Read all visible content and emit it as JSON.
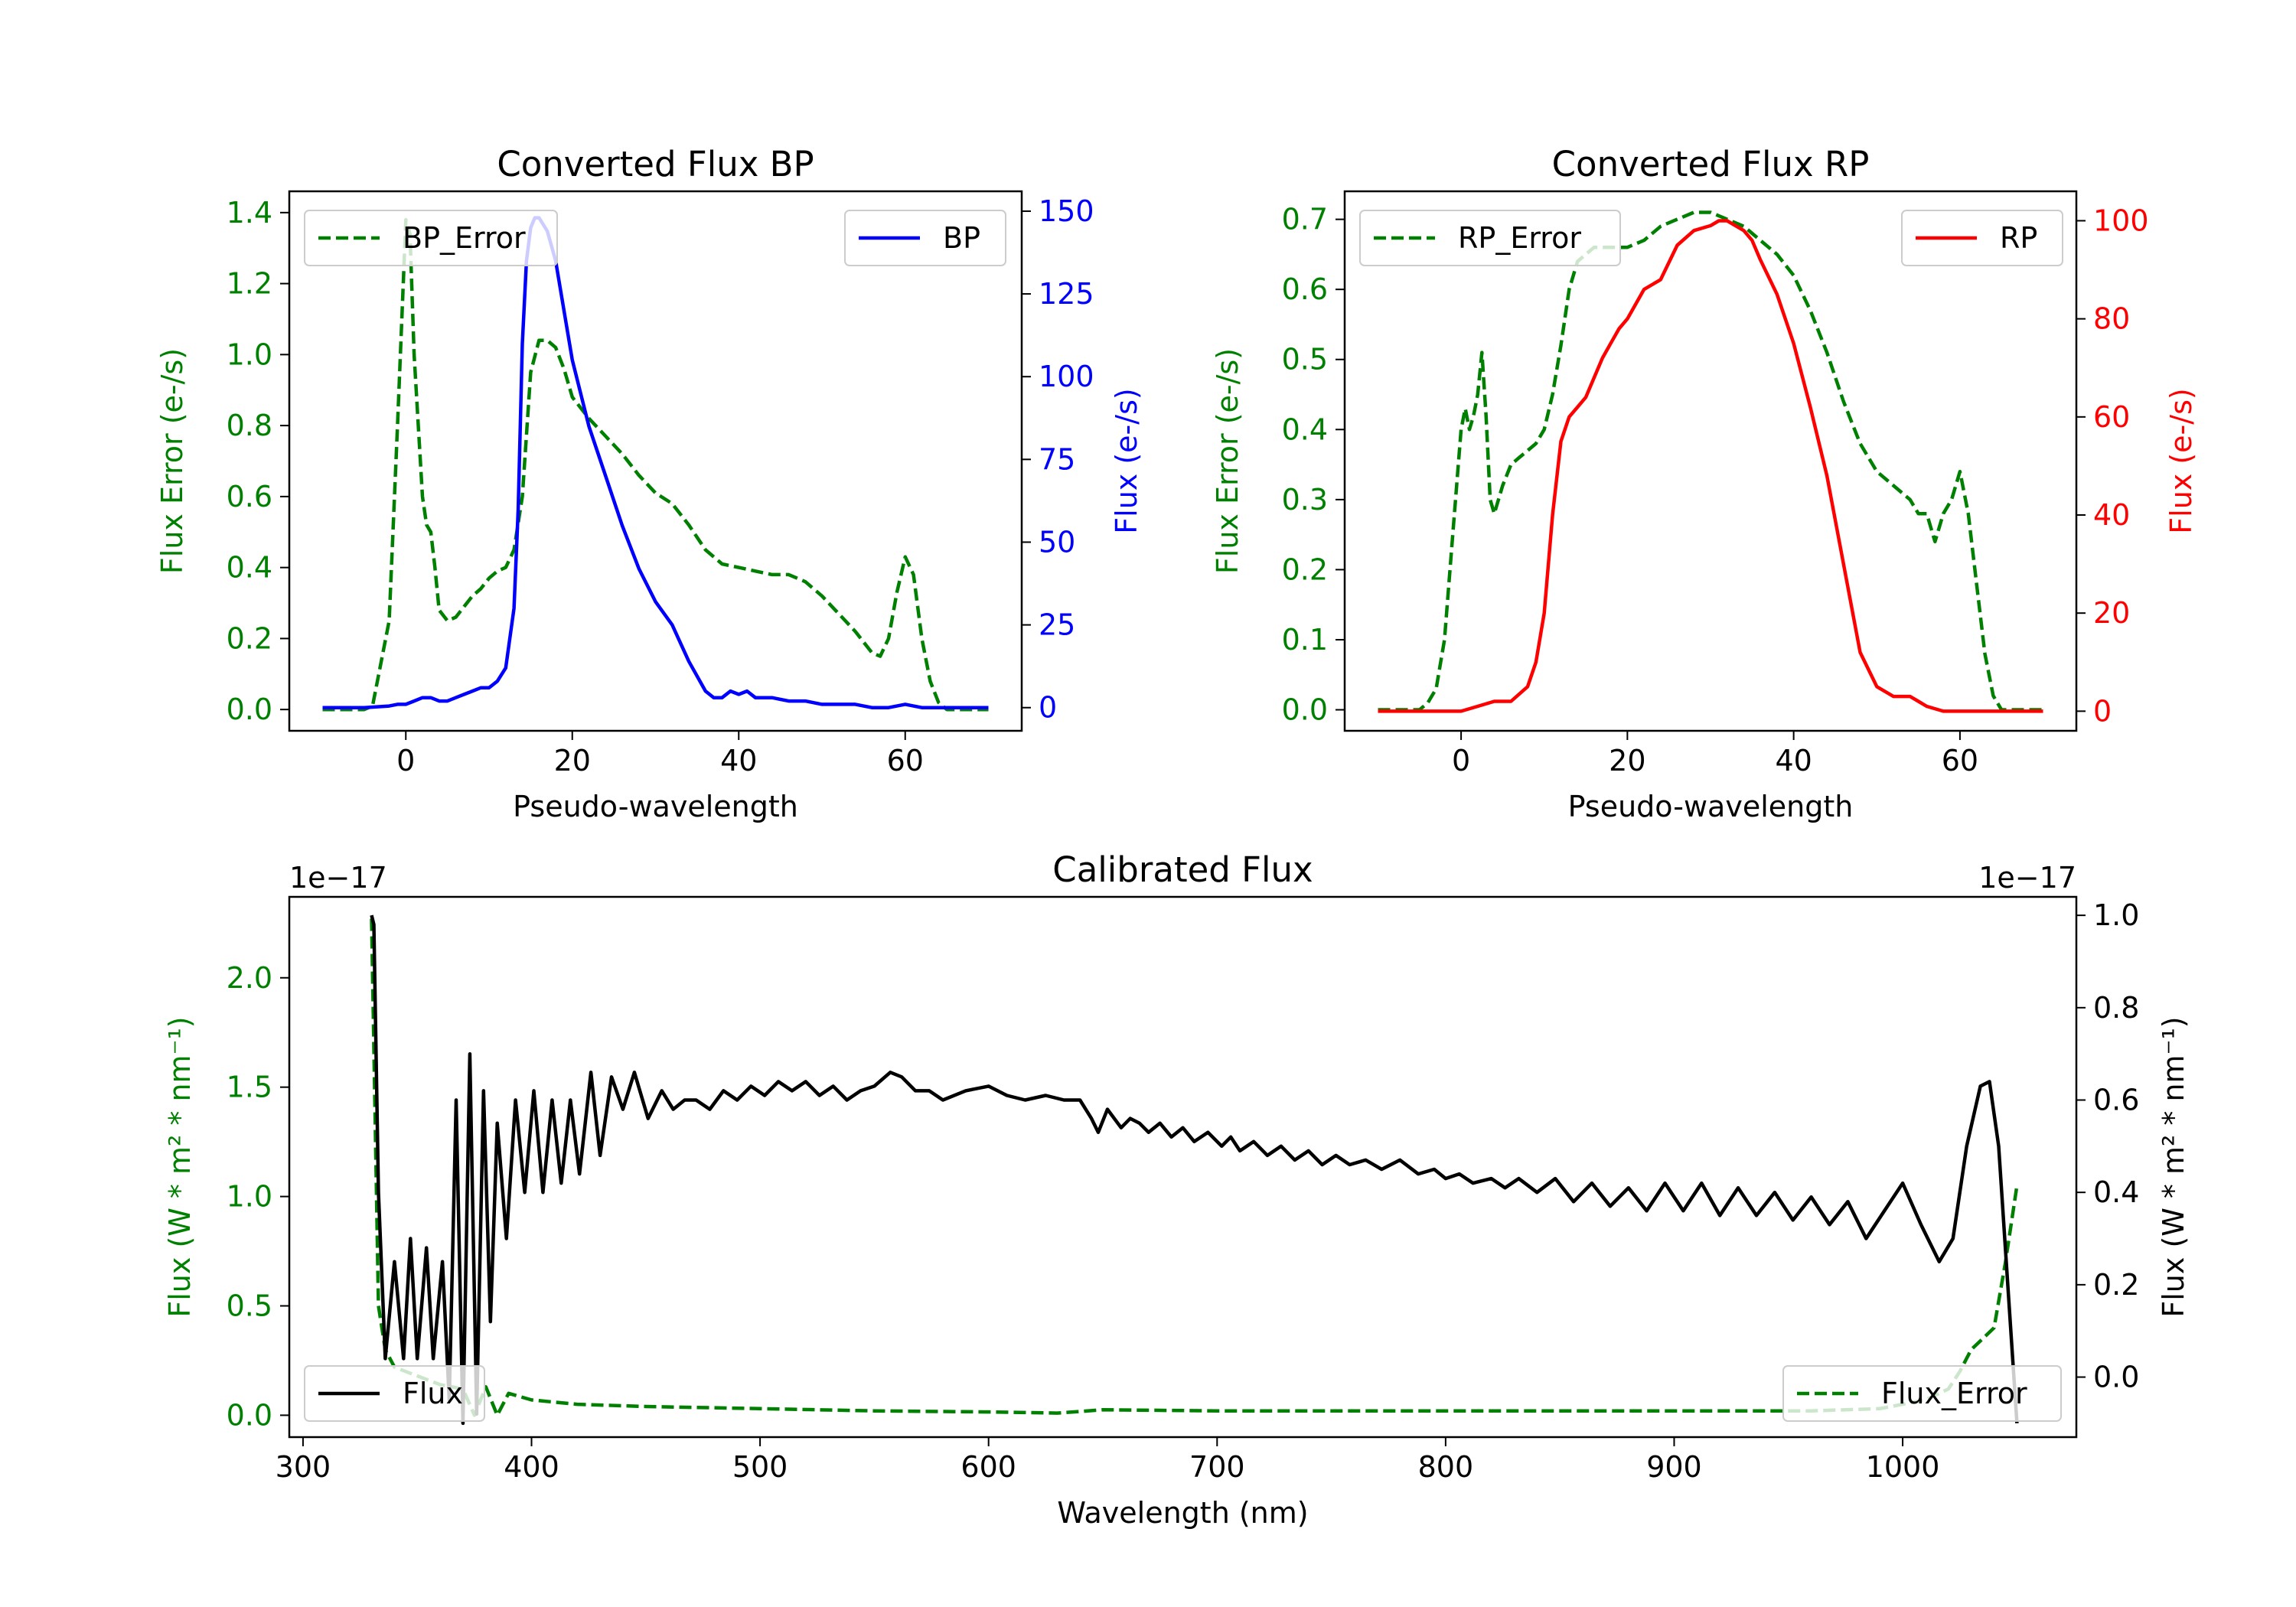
{
  "chart_data": [
    {
      "id": "bp",
      "type": "line",
      "title": "Converted Flux BP",
      "xlabel": "Pseudo-wavelength",
      "ylabel_left": "Flux Error (e-/s)",
      "ylabel_right": "Flux (e-/s)",
      "xlim": [
        -14,
        74
      ],
      "ylim_left": [
        -0.06,
        1.46
      ],
      "ylim_right": [
        -7,
        156
      ],
      "xticks": [
        0,
        20,
        40,
        60
      ],
      "yticks_left": [
        0.0,
        0.2,
        0.4,
        0.6,
        0.8,
        1.0,
        1.2,
        1.4
      ],
      "yticks_right": [
        0,
        25,
        50,
        75,
        100,
        125,
        150
      ],
      "left_color": "#008000",
      "right_color": "#0000ff",
      "legend_left": "BP_Error",
      "legend_right": "BP",
      "series": [
        {
          "name": "BP_Error",
          "axis": "left",
          "color": "#008000",
          "dash": true,
          "x": [
            -10,
            -5,
            -4,
            -2,
            -1,
            0,
            0.5,
            1,
            2,
            2.5,
            3,
            3.5,
            4,
            5,
            6,
            7,
            8,
            9,
            10,
            11,
            12,
            13,
            14,
            15,
            16,
            17,
            18,
            19,
            20,
            22,
            24,
            26,
            28,
            30,
            32,
            34,
            36,
            38,
            40,
            42,
            44,
            46,
            48,
            50,
            52,
            54,
            56,
            57,
            58,
            59,
            60,
            61,
            62,
            63,
            64,
            65,
            66,
            70
          ],
          "y": [
            0.0,
            0.0,
            0.01,
            0.25,
            0.8,
            1.38,
            1.34,
            1.0,
            0.6,
            0.52,
            0.5,
            0.4,
            0.28,
            0.25,
            0.26,
            0.29,
            0.32,
            0.34,
            0.37,
            0.39,
            0.4,
            0.45,
            0.6,
            0.95,
            1.04,
            1.04,
            1.02,
            0.96,
            0.88,
            0.82,
            0.77,
            0.72,
            0.66,
            0.61,
            0.58,
            0.52,
            0.45,
            0.41,
            0.4,
            0.39,
            0.38,
            0.38,
            0.36,
            0.32,
            0.27,
            0.22,
            0.16,
            0.15,
            0.2,
            0.33,
            0.43,
            0.38,
            0.2,
            0.08,
            0.02,
            0.0,
            0.0,
            0.0
          ]
        },
        {
          "name": "BP",
          "axis": "right",
          "color": "#0000ff",
          "dash": false,
          "x": [
            -10,
            -5,
            -2,
            -1,
            0,
            1,
            2,
            3,
            4,
            5,
            6,
            7,
            8,
            9,
            10,
            11,
            12,
            13,
            13.5,
            14,
            14.5,
            15,
            15.5,
            16,
            17,
            18,
            19,
            20,
            22,
            24,
            26,
            28,
            30,
            32,
            34,
            36,
            37,
            38,
            39,
            40,
            41,
            42,
            44,
            46,
            48,
            50,
            52,
            54,
            56,
            58,
            60,
            62,
            64,
            66,
            70
          ],
          "y": [
            0,
            0,
            0.5,
            1,
            1,
            2,
            3,
            3,
            2,
            2,
            3,
            4,
            5,
            6,
            6,
            8,
            12,
            30,
            60,
            110,
            135,
            145,
            148,
            148,
            144,
            135,
            120,
            105,
            85,
            70,
            55,
            42,
            32,
            25,
            14,
            5,
            3,
            3,
            5,
            4,
            5,
            3,
            3,
            2,
            2,
            1,
            1,
            1,
            0,
            0,
            1,
            0,
            0,
            0,
            0
          ]
        }
      ]
    },
    {
      "id": "rp",
      "type": "line",
      "title": "Converted Flux RP",
      "xlabel": "Pseudo-wavelength",
      "ylabel_left": "Flux Error (e-/s)",
      "ylabel_right": "Flux (e-/s)",
      "xlim": [
        -14,
        74
      ],
      "ylim_left": [
        -0.03,
        0.74
      ],
      "ylim_right": [
        -4,
        106
      ],
      "xticks": [
        0,
        20,
        40,
        60
      ],
      "yticks_left": [
        0.0,
        0.1,
        0.2,
        0.3,
        0.4,
        0.5,
        0.6,
        0.7
      ],
      "yticks_right": [
        0,
        20,
        40,
        60,
        80,
        100
      ],
      "left_color": "#008000",
      "right_color": "#ff0000",
      "legend_left": "RP_Error",
      "legend_right": "RP",
      "series": [
        {
          "name": "RP_Error",
          "axis": "left",
          "color": "#008000",
          "dash": true,
          "x": [
            -10,
            -5,
            -4,
            -3,
            -2,
            -1,
            0,
            0.5,
            1,
            1.5,
            2,
            2.5,
            3,
            3.5,
            4,
            5,
            6,
            7,
            8,
            9,
            10,
            11,
            12,
            13,
            14,
            15,
            16,
            18,
            20,
            22,
            24,
            26,
            28,
            30,
            32,
            34,
            36,
            38,
            40,
            42,
            44,
            46,
            48,
            50,
            52,
            54,
            55,
            56,
            57,
            58,
            59,
            60,
            61,
            62,
            63,
            64,
            65,
            66,
            70
          ],
          "y": [
            0.0,
            0.0,
            0.01,
            0.03,
            0.1,
            0.25,
            0.4,
            0.43,
            0.4,
            0.42,
            0.45,
            0.51,
            0.42,
            0.3,
            0.28,
            0.32,
            0.35,
            0.36,
            0.37,
            0.38,
            0.4,
            0.45,
            0.52,
            0.6,
            0.64,
            0.65,
            0.66,
            0.66,
            0.66,
            0.67,
            0.69,
            0.7,
            0.71,
            0.71,
            0.7,
            0.69,
            0.67,
            0.65,
            0.62,
            0.57,
            0.51,
            0.44,
            0.38,
            0.34,
            0.32,
            0.3,
            0.28,
            0.28,
            0.24,
            0.28,
            0.3,
            0.34,
            0.28,
            0.18,
            0.08,
            0.02,
            0.0,
            0.0,
            0.0
          ]
        },
        {
          "name": "RP",
          "axis": "right",
          "color": "#ff0000",
          "dash": false,
          "x": [
            -10,
            -5,
            0,
            2,
            4,
            6,
            8,
            9,
            10,
            11,
            12,
            13,
            14,
            15,
            16,
            17,
            18,
            19,
            20,
            22,
            24,
            26,
            28,
            30,
            31,
            32,
            33,
            34,
            35,
            36,
            38,
            40,
            42,
            44,
            46,
            48,
            50,
            52,
            54,
            55,
            56,
            58,
            60,
            62,
            64,
            66,
            70
          ],
          "y": [
            0,
            0,
            0,
            1,
            2,
            2,
            5,
            10,
            20,
            40,
            55,
            60,
            62,
            64,
            68,
            72,
            75,
            78,
            80,
            86,
            88,
            95,
            98,
            99,
            100,
            100,
            99,
            98,
            96,
            92,
            85,
            75,
            62,
            48,
            30,
            12,
            5,
            3,
            3,
            2,
            1,
            0,
            0,
            0,
            0,
            0,
            0
          ]
        }
      ]
    },
    {
      "id": "cal",
      "type": "line",
      "title": "Calibrated Flux",
      "xlabel": "Wavelength (nm)",
      "ylabel_left": "Flux (W * m² * nm⁻¹)",
      "ylabel_right": "Flux (W * m² * nm⁻¹)",
      "offset_left": "1e−17",
      "offset_right": "1e−17",
      "xlim": [
        294,
        1076
      ],
      "ylim_left": [
        -0.1,
        2.37
      ],
      "ylim_right": [
        -0.13,
        1.04
      ],
      "xticks": [
        300,
        400,
        500,
        600,
        700,
        800,
        900,
        1000
      ],
      "yticks_left": [
        0.0,
        0.5,
        1.0,
        1.5,
        2.0
      ],
      "yticks_right": [
        0.0,
        0.2,
        0.4,
        0.6,
        0.8,
        1.0
      ],
      "left_color": "#008000",
      "right_color": "#000000",
      "legend_left": "Flux",
      "legend_right": "Flux_Error",
      "series": [
        {
          "name": "Flux_Error",
          "axis": "left",
          "color": "#008000",
          "dash": true,
          "x": [
            330,
            333,
            336,
            340,
            345,
            350,
            360,
            370,
            375,
            380,
            385,
            390,
            400,
            420,
            450,
            500,
            550,
            600,
            630,
            650,
            700,
            800,
            900,
            960,
            990,
            1000,
            1010,
            1020,
            1025,
            1030,
            1035,
            1040,
            1045,
            1050
          ],
          "y": [
            2.27,
            0.5,
            0.3,
            0.22,
            0.2,
            0.18,
            0.14,
            0.12,
            0.0,
            0.13,
            0.0,
            0.1,
            0.07,
            0.05,
            0.04,
            0.03,
            0.02,
            0.015,
            0.01,
            0.025,
            0.02,
            0.02,
            0.02,
            0.02,
            0.03,
            0.05,
            0.07,
            0.12,
            0.2,
            0.3,
            0.35,
            0.4,
            0.7,
            1.05
          ]
        },
        {
          "name": "Flux",
          "axis": "right",
          "color": "#000000",
          "dash": false,
          "x": [
            330,
            331,
            333,
            336,
            340,
            344,
            347,
            350,
            354,
            357,
            361,
            364,
            367,
            370,
            373,
            376,
            379,
            382,
            385,
            389,
            393,
            397,
            401,
            405,
            409,
            413,
            417,
            421,
            426,
            430,
            435,
            440,
            445,
            451,
            457,
            462,
            467,
            472,
            478,
            484,
            490,
            496,
            502,
            508,
            514,
            520,
            526,
            532,
            538,
            544,
            550,
            557,
            562,
            568,
            574,
            580,
            590,
            600,
            608,
            616,
            625,
            633,
            640,
            645,
            648,
            652,
            658,
            662,
            666,
            670,
            675,
            680,
            685,
            690,
            696,
            702,
            706,
            710,
            716,
            722,
            728,
            734,
            740,
            746,
            752,
            758,
            765,
            772,
            780,
            788,
            795,
            800,
            806,
            812,
            820,
            826,
            832,
            840,
            848,
            856,
            864,
            872,
            880,
            888,
            896,
            904,
            912,
            920,
            928,
            936,
            944,
            952,
            960,
            968,
            976,
            984,
            992,
            1000,
            1008,
            1016,
            1022,
            1028,
            1034,
            1038,
            1042,
            1046,
            1050
          ],
          "y": [
            1.0,
            0.98,
            0.4,
            0.04,
            0.25,
            0.04,
            0.3,
            0.04,
            0.28,
            0.04,
            0.25,
            -0.05,
            0.6,
            -0.1,
            0.7,
            -0.08,
            0.62,
            0.12,
            0.55,
            0.3,
            0.6,
            0.4,
            0.62,
            0.4,
            0.6,
            0.42,
            0.6,
            0.44,
            0.66,
            0.48,
            0.65,
            0.58,
            0.66,
            0.56,
            0.62,
            0.58,
            0.6,
            0.6,
            0.58,
            0.62,
            0.6,
            0.63,
            0.61,
            0.64,
            0.62,
            0.64,
            0.61,
            0.63,
            0.6,
            0.62,
            0.63,
            0.66,
            0.65,
            0.62,
            0.62,
            0.6,
            0.62,
            0.63,
            0.61,
            0.6,
            0.61,
            0.6,
            0.6,
            0.56,
            0.53,
            0.58,
            0.54,
            0.56,
            0.55,
            0.53,
            0.55,
            0.52,
            0.54,
            0.51,
            0.53,
            0.5,
            0.52,
            0.49,
            0.51,
            0.48,
            0.5,
            0.47,
            0.49,
            0.46,
            0.48,
            0.46,
            0.47,
            0.45,
            0.47,
            0.44,
            0.45,
            0.43,
            0.44,
            0.42,
            0.43,
            0.41,
            0.43,
            0.4,
            0.43,
            0.38,
            0.42,
            0.37,
            0.41,
            0.36,
            0.42,
            0.36,
            0.42,
            0.35,
            0.41,
            0.35,
            0.4,
            0.34,
            0.39,
            0.33,
            0.38,
            0.3,
            0.36,
            0.42,
            0.33,
            0.25,
            0.3,
            0.5,
            0.63,
            0.64,
            0.5,
            0.2,
            -0.1
          ]
        }
      ]
    }
  ]
}
